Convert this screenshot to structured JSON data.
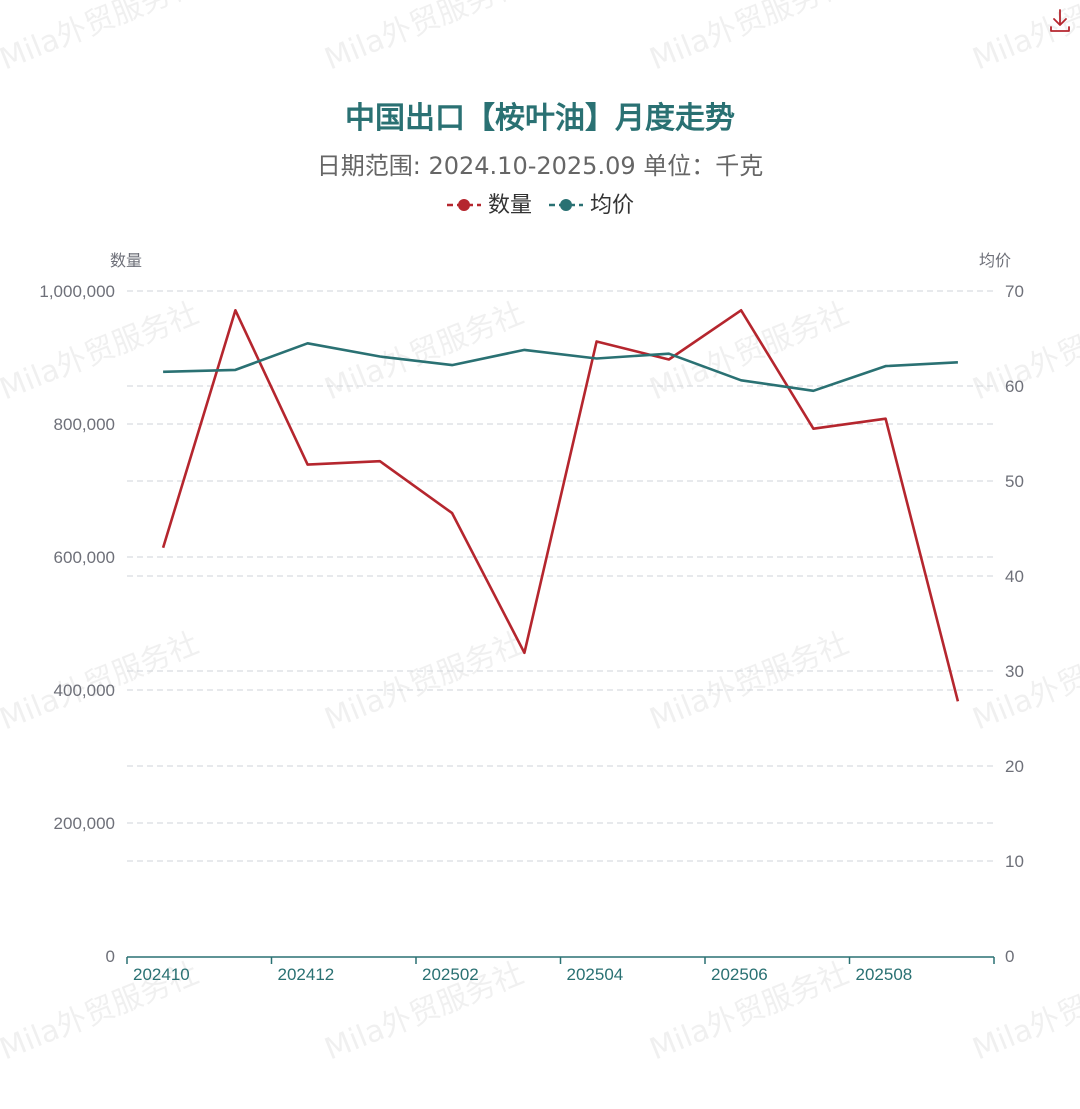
{
  "toolbar": {
    "download_icon": "download-icon"
  },
  "watermark": {
    "text": "Mila外贸服务社"
  },
  "colors": {
    "title": "#2a7173",
    "subtitle": "#666666",
    "quantity": "#b5262e",
    "price": "#2a7173",
    "axis_text": "#6e7079",
    "grid": "#cfd3d8",
    "x_axis": "#2a7173"
  },
  "chart_data": {
    "type": "line",
    "title": "中国出口【桉叶油】月度走势",
    "subtitle": "日期范围: 2024.10-2025.09    单位：千克",
    "legend": [
      "数量",
      "均价"
    ],
    "legend_position": "top-center",
    "y_left_label": "数量",
    "y_right_label": "均价",
    "y_left_ticks": [
      "0",
      "200,000",
      "400,000",
      "600,000",
      "800,000",
      "1,000,000"
    ],
    "y_right_ticks": [
      "0",
      "10",
      "20",
      "30",
      "40",
      "50",
      "60",
      "70"
    ],
    "y_left_range": [
      0,
      1000000
    ],
    "y_right_range": [
      0,
      70
    ],
    "x": [
      "202410",
      "202411",
      "202412",
      "202501",
      "202502",
      "202503",
      "202504",
      "202505",
      "202506",
      "202507",
      "202508",
      "202509"
    ],
    "x_tick_labels": [
      "202410",
      "202412",
      "202502",
      "202504",
      "202506",
      "202508"
    ],
    "grid": "dashed",
    "series": [
      {
        "name": "数量",
        "axis": "left",
        "values": [
          614000,
          971000,
          739000,
          744000,
          666000,
          456000,
          924000,
          897000,
          971000,
          793000,
          808000,
          383000
        ]
      },
      {
        "name": "均价",
        "axis": "right",
        "values": [
          61.5,
          61.7,
          64.5,
          63.1,
          62.2,
          63.8,
          62.9,
          63.4,
          60.6,
          59.5,
          62.1,
          62.5
        ]
      }
    ]
  }
}
